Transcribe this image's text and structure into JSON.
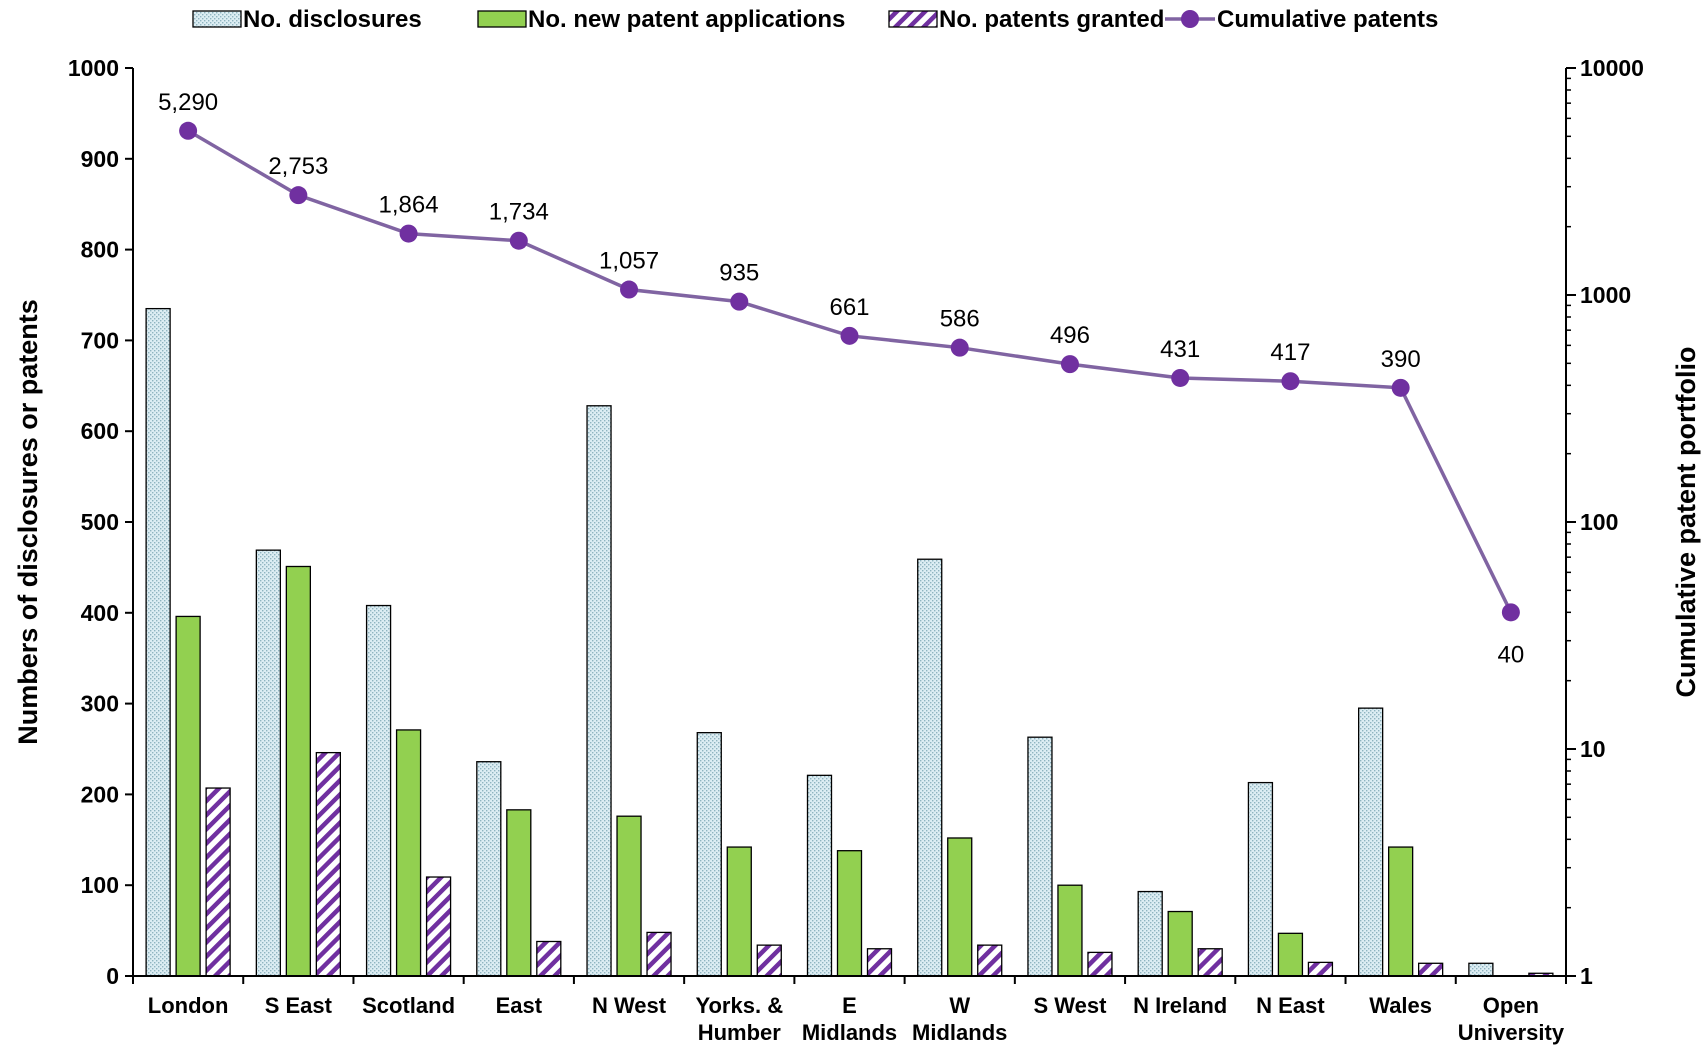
{
  "chart_data": {
    "type": "bar",
    "categories": [
      [
        "London"
      ],
      [
        "S East"
      ],
      [
        "Scotland"
      ],
      [
        "East"
      ],
      [
        "N West"
      ],
      [
        "Yorks. &",
        "Humber"
      ],
      [
        "E",
        "Midlands"
      ],
      [
        "W",
        "Midlands"
      ],
      [
        "S West"
      ],
      [
        "N Ireland"
      ],
      [
        "N East"
      ],
      [
        "Wales"
      ],
      [
        "Open",
        "University"
      ]
    ],
    "series": [
      {
        "name": "No. disclosures",
        "kind": "bar",
        "fill": "dotted",
        "color": "#d9ecf2",
        "values": [
          735,
          469,
          408,
          236,
          628,
          268,
          221,
          459,
          263,
          93,
          213,
          295,
          14
        ]
      },
      {
        "name": "No.  new patent applications",
        "kind": "bar",
        "fill": "solid",
        "color": "#92d050",
        "values": [
          396,
          451,
          271,
          183,
          176,
          142,
          138,
          152,
          100,
          71,
          47,
          142,
          0
        ]
      },
      {
        "name": "No. patents granted",
        "kind": "bar",
        "fill": "hatched",
        "color": "#7030a0",
        "values": [
          207,
          246,
          109,
          38,
          48,
          34,
          30,
          34,
          26,
          30,
          15,
          14,
          3
        ]
      },
      {
        "name": "Cumulative patents",
        "kind": "line",
        "axis": "right",
        "color": "#7030a0",
        "values": [
          5290,
          2753,
          1864,
          1734,
          1057,
          935,
          661,
          586,
          496,
          431,
          417,
          390,
          40
        ],
        "labels": [
          "5,290",
          "2,753",
          "1,864",
          "1,734",
          "1,057",
          "935",
          "661",
          "586",
          "496",
          "431",
          "417",
          "390",
          "40"
        ]
      }
    ],
    "y_left": {
      "label": "Numbers of disclosures or patents",
      "range": [
        0,
        1000
      ],
      "ticks": [
        "0",
        "100",
        "200",
        "300",
        "400",
        "500",
        "600",
        "700",
        "800",
        "900",
        "1000"
      ]
    },
    "y_right": {
      "label": "Cumulative  patent  portfolio",
      "scale": "log",
      "range": [
        1,
        10000
      ],
      "ticks": [
        "1",
        "10",
        "100",
        "1000",
        "10000"
      ]
    },
    "grid": false,
    "legend_position": "top"
  }
}
